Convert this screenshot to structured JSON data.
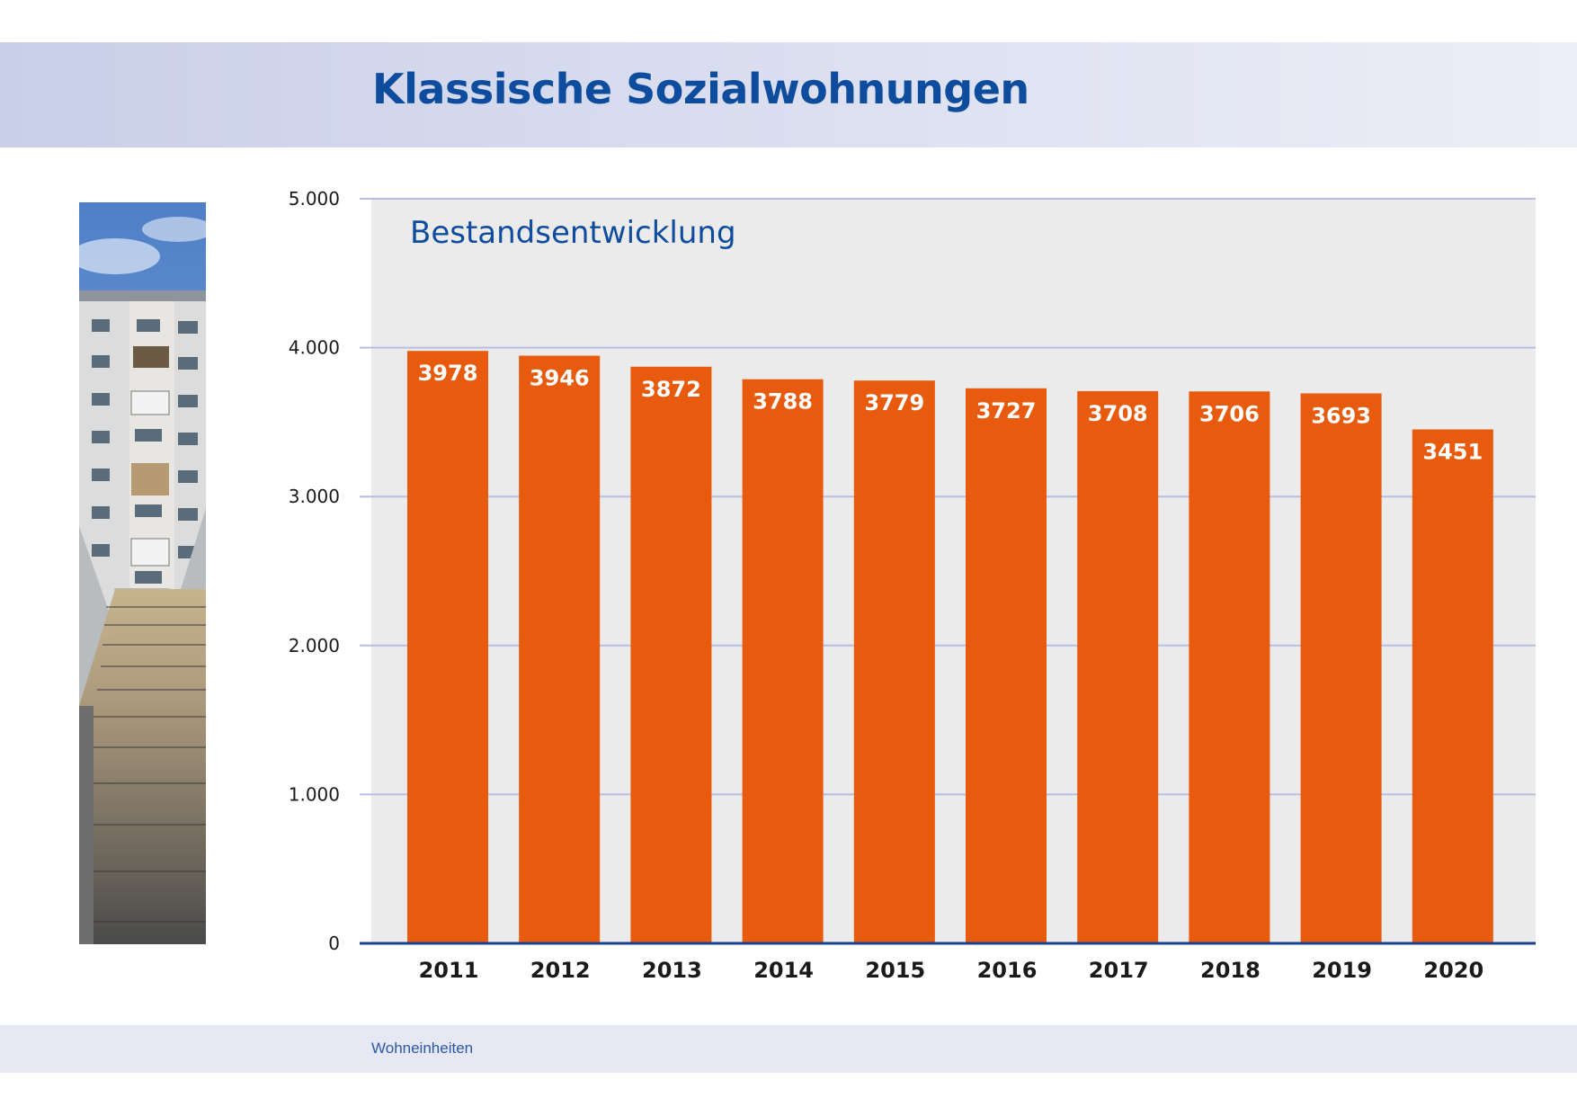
{
  "page": {
    "title": "Klassische Sozialwohnungen",
    "footer_note": "Wohneinheiten"
  },
  "colors": {
    "title": "#0e4c9e",
    "bar": "#e85a0e",
    "plot_background": "#ebebeb",
    "gridline": "#b7bde3",
    "baseline": "#1a3f8c"
  },
  "chart_data": {
    "type": "bar",
    "title": "Bestandsentwicklung",
    "categories": [
      "2011",
      "2012",
      "2013",
      "2014",
      "2015",
      "2016",
      "2017",
      "2018",
      "2019",
      "2020"
    ],
    "values": [
      3978,
      3946,
      3872,
      3788,
      3779,
      3727,
      3708,
      3706,
      3693,
      3451
    ],
    "data_labels": [
      "3978",
      "3946",
      "3872",
      "3788",
      "3779",
      "3727",
      "3708",
      "3706",
      "3693",
      "3451"
    ],
    "ylim": [
      0,
      5000
    ],
    "yticks": [
      0,
      1000,
      2000,
      3000,
      4000,
      5000
    ],
    "ytick_labels": [
      "0",
      "1.000",
      "2.000",
      "3.000",
      "4.000",
      "5.000"
    ],
    "grid": true,
    "xlabel": "",
    "ylabel": ""
  }
}
